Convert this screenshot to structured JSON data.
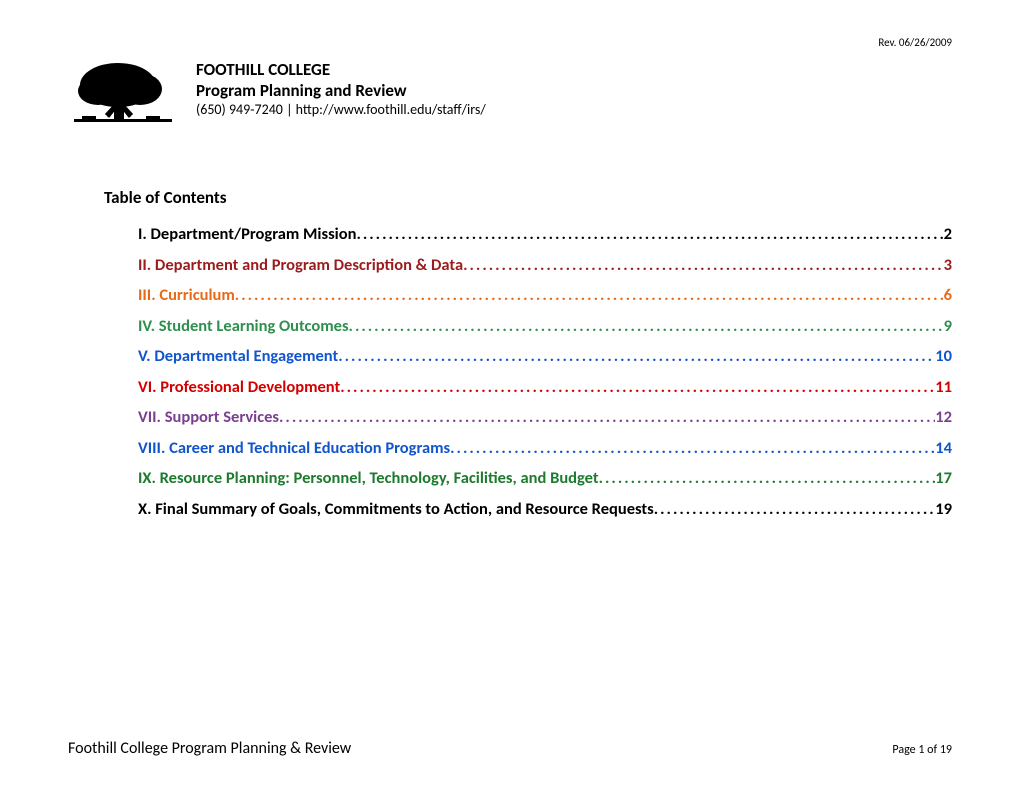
{
  "colors": {
    "black": "#000000",
    "dark_red": "#9b1c1c",
    "orange": "#e86a17",
    "green": "#2f8f4e",
    "blue": "#1155cc",
    "red": "#d40000",
    "purple": "#7b3f8f",
    "dark_green": "#1e7a2e"
  },
  "revision_date": "Rev. 06/26/2009",
  "header": {
    "college_name": "FOOTHILL COLLEGE",
    "program_title": "Program Planning and Review",
    "contact": "(650) 949-7240  |  http://www.foothill.edu/staff/irs/"
  },
  "toc": {
    "heading": "Table of Contents",
    "items": [
      {
        "label": "I. Department/Program Mission",
        "page": "2",
        "color": "#000000"
      },
      {
        "label": "II. Department and Program Description & Data",
        "page": "3",
        "color": "#9b1c1c"
      },
      {
        "label": "III. Curriculum",
        "page": "6",
        "color": "#e86a17"
      },
      {
        "label": "IV. Student Learning Outcomes",
        "page": "9",
        "color": "#2f8f4e"
      },
      {
        "label": "V. Departmental Engagement",
        "page": "10",
        "color": "#1155cc"
      },
      {
        "label": "VI. Professional Development",
        "page": "11",
        "color": "#d40000"
      },
      {
        "label": "VII. Support Services",
        "page": "12",
        "color": "#7b3f8f"
      },
      {
        "label": "VIII. Career and Technical Education Programs",
        "page": "14",
        "color": "#1155cc"
      },
      {
        "label": "IX. Resource Planning: Personnel, Technology, Facilities, and Budget",
        "page": "17",
        "color": "#1e7a2e"
      },
      {
        "label": "X. Final Summary of Goals, Commitments to Action, and Resource Requests",
        "page": "19",
        "color": "#000000"
      }
    ]
  },
  "footer": {
    "left": "Foothill College Program Planning & Review",
    "right_prefix": "Page ",
    "page_current": "1",
    "right_mid": " of ",
    "page_total": "19"
  }
}
